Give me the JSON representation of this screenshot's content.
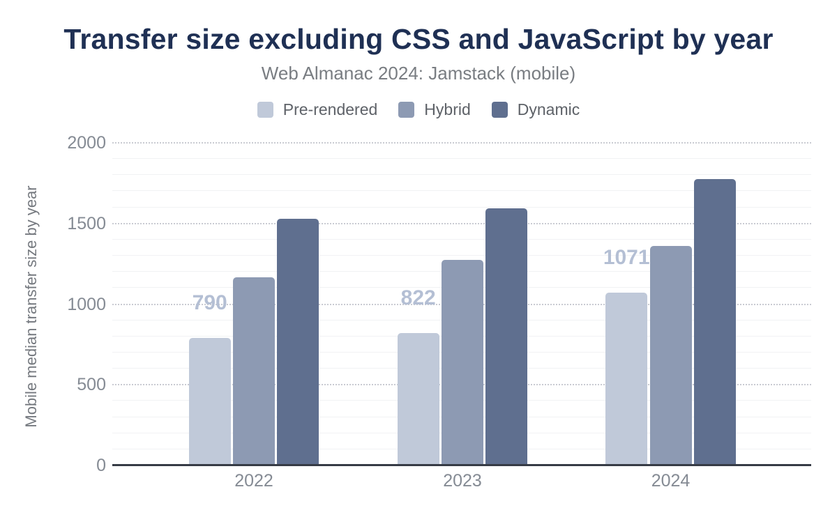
{
  "chart_data": {
    "type": "bar",
    "title": "Transfer size excluding CSS and JavaScript by year",
    "subtitle": "Web Almanac 2024: Jamstack (mobile)",
    "ylabel": "Mobile median transfer size by year",
    "xlabel": "",
    "categories": [
      "2022",
      "2023",
      "2024"
    ],
    "series": [
      {
        "name": "Pre-rendered",
        "color": "#c0c9d9",
        "values": [
          790,
          822,
          1071
        ],
        "data_labels": [
          "790",
          "822",
          "1071"
        ]
      },
      {
        "name": "Hybrid",
        "color": "#8d9ab3",
        "values": [
          1165,
          1275,
          1360
        ]
      },
      {
        "name": "Dynamic",
        "color": "#5f6f8f",
        "values": [
          1530,
          1595,
          1775
        ]
      }
    ],
    "ylim": [
      0,
      2000
    ],
    "yticks": [
      0,
      500,
      1000,
      1500,
      2000
    ],
    "minor_grid_step": 100,
    "grid": "minor solid horizontal every 100, major dotted every 500",
    "legend_position": "top"
  },
  "colors": {
    "background": "#ffffff",
    "title": "#1f3054",
    "subtitle": "#797d82",
    "legend_text": "#5e6268",
    "tick_label": "#858b94",
    "y_axis_title": "#75797f",
    "grid_major": "#c9cbd2",
    "grid_minor": "#f1f2f4",
    "axis_line": "#363b45",
    "data_label": "#b4bfd4"
  }
}
